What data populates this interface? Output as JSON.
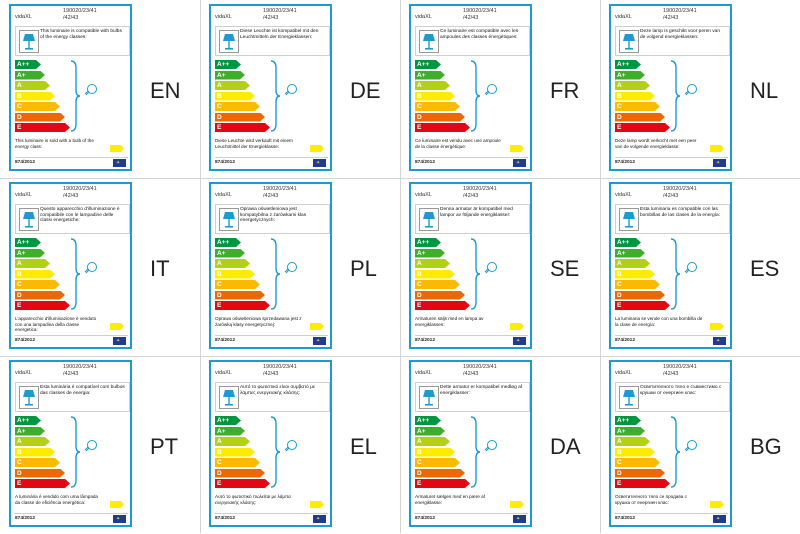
{
  "product": {
    "brand": "vidaXL",
    "code_line1": "190020/23/41",
    "code_line2": "/42/43",
    "regulation": "874/2012"
  },
  "scale_classes": [
    "A++",
    "A+",
    "A",
    "B",
    "C",
    "D",
    "E"
  ],
  "colors": {
    "frame": "#1b9bd2",
    "class_colors": [
      "#00963f",
      "#3fae2a",
      "#b3cf16",
      "#fdec00",
      "#fbba00",
      "#ec6707",
      "#e30613"
    ],
    "footer_swatch": "#ffed00",
    "eu_blue": "#1f3a93"
  },
  "labels": [
    {
      "lang": "EN",
      "header": "This luminaire is compatible with bulbs of the energy classes:",
      "footer": "This luminaire is sold with a bulb of the energy class:"
    },
    {
      "lang": "DE",
      "header": "Diese Leuchte ist kompatibel mit den Leuchtmitteln der Energieklassen:",
      "footer": "Diese Leuchte wird verkauft mit einem Leuchtmittel der Energieklasse:"
    },
    {
      "lang": "FR",
      "header": "Ce luminaire est compatible avec les ampoules des classes énergétiques:",
      "footer": "Ce luminaire est vendu avec une ampoule de la classe énergétique:"
    },
    {
      "lang": "NL",
      "header": "Deze lamp is geschikt voor peren van de volgend energieklassen:",
      "footer": "Deze lamp wordt verkocht met een peer van de volgende energieklasse:"
    },
    {
      "lang": "IT",
      "header": "Questo apparecchio d'illuminazione è compatibile con le lampadine delle classi energetiche:",
      "footer": "L'apparecchio d'illuminazione è venduto con una lampadina della classe energetica:"
    },
    {
      "lang": "PL",
      "header": "Oprawa oświetleniowa jest kompatybilna z żarówkami klas energetycznych:",
      "footer": "Oprawa oświetleniowa sprzedawana jest z żarówką klasy energetycznej:"
    },
    {
      "lang": "SE",
      "header": "Denna armatur är kompatibel med lampor av följande energiklasser:",
      "footer": "Armaturen säljs med en lampa av energiklassen:"
    },
    {
      "lang": "ES",
      "header": "Esta luminaria es compatible con las bombillas de las clases de la energía:",
      "footer": "La luminaria se vende con una bombilla de la clase de energía:"
    },
    {
      "lang": "PT",
      "header": "Esta luminária é compatível com bulbos das classes de energia:",
      "footer": "A luminária é vendido com uma lâmpada da classe de eficiência energética:"
    },
    {
      "lang": "EL",
      "header": "Αυτό το φωτιστικό είναι συμβατό με λάμπες ενεργειακής κλάσης:",
      "footer": "Αυτό το φωτιστικό πωλείται με λάμπα ενεργειακής κλάσης:"
    },
    {
      "lang": "DA",
      "header": "Dette armatur er kompatibel medløg af energiklasser:",
      "footer": "Armaturet sælges med en pære af energiklasse:"
    },
    {
      "lang": "BG",
      "header": "Осветителното тяло е съвместимо с крушки от енергиен клас:",
      "footer": "Осветителното тяло се продава с крушка от енергиен клас:"
    }
  ]
}
